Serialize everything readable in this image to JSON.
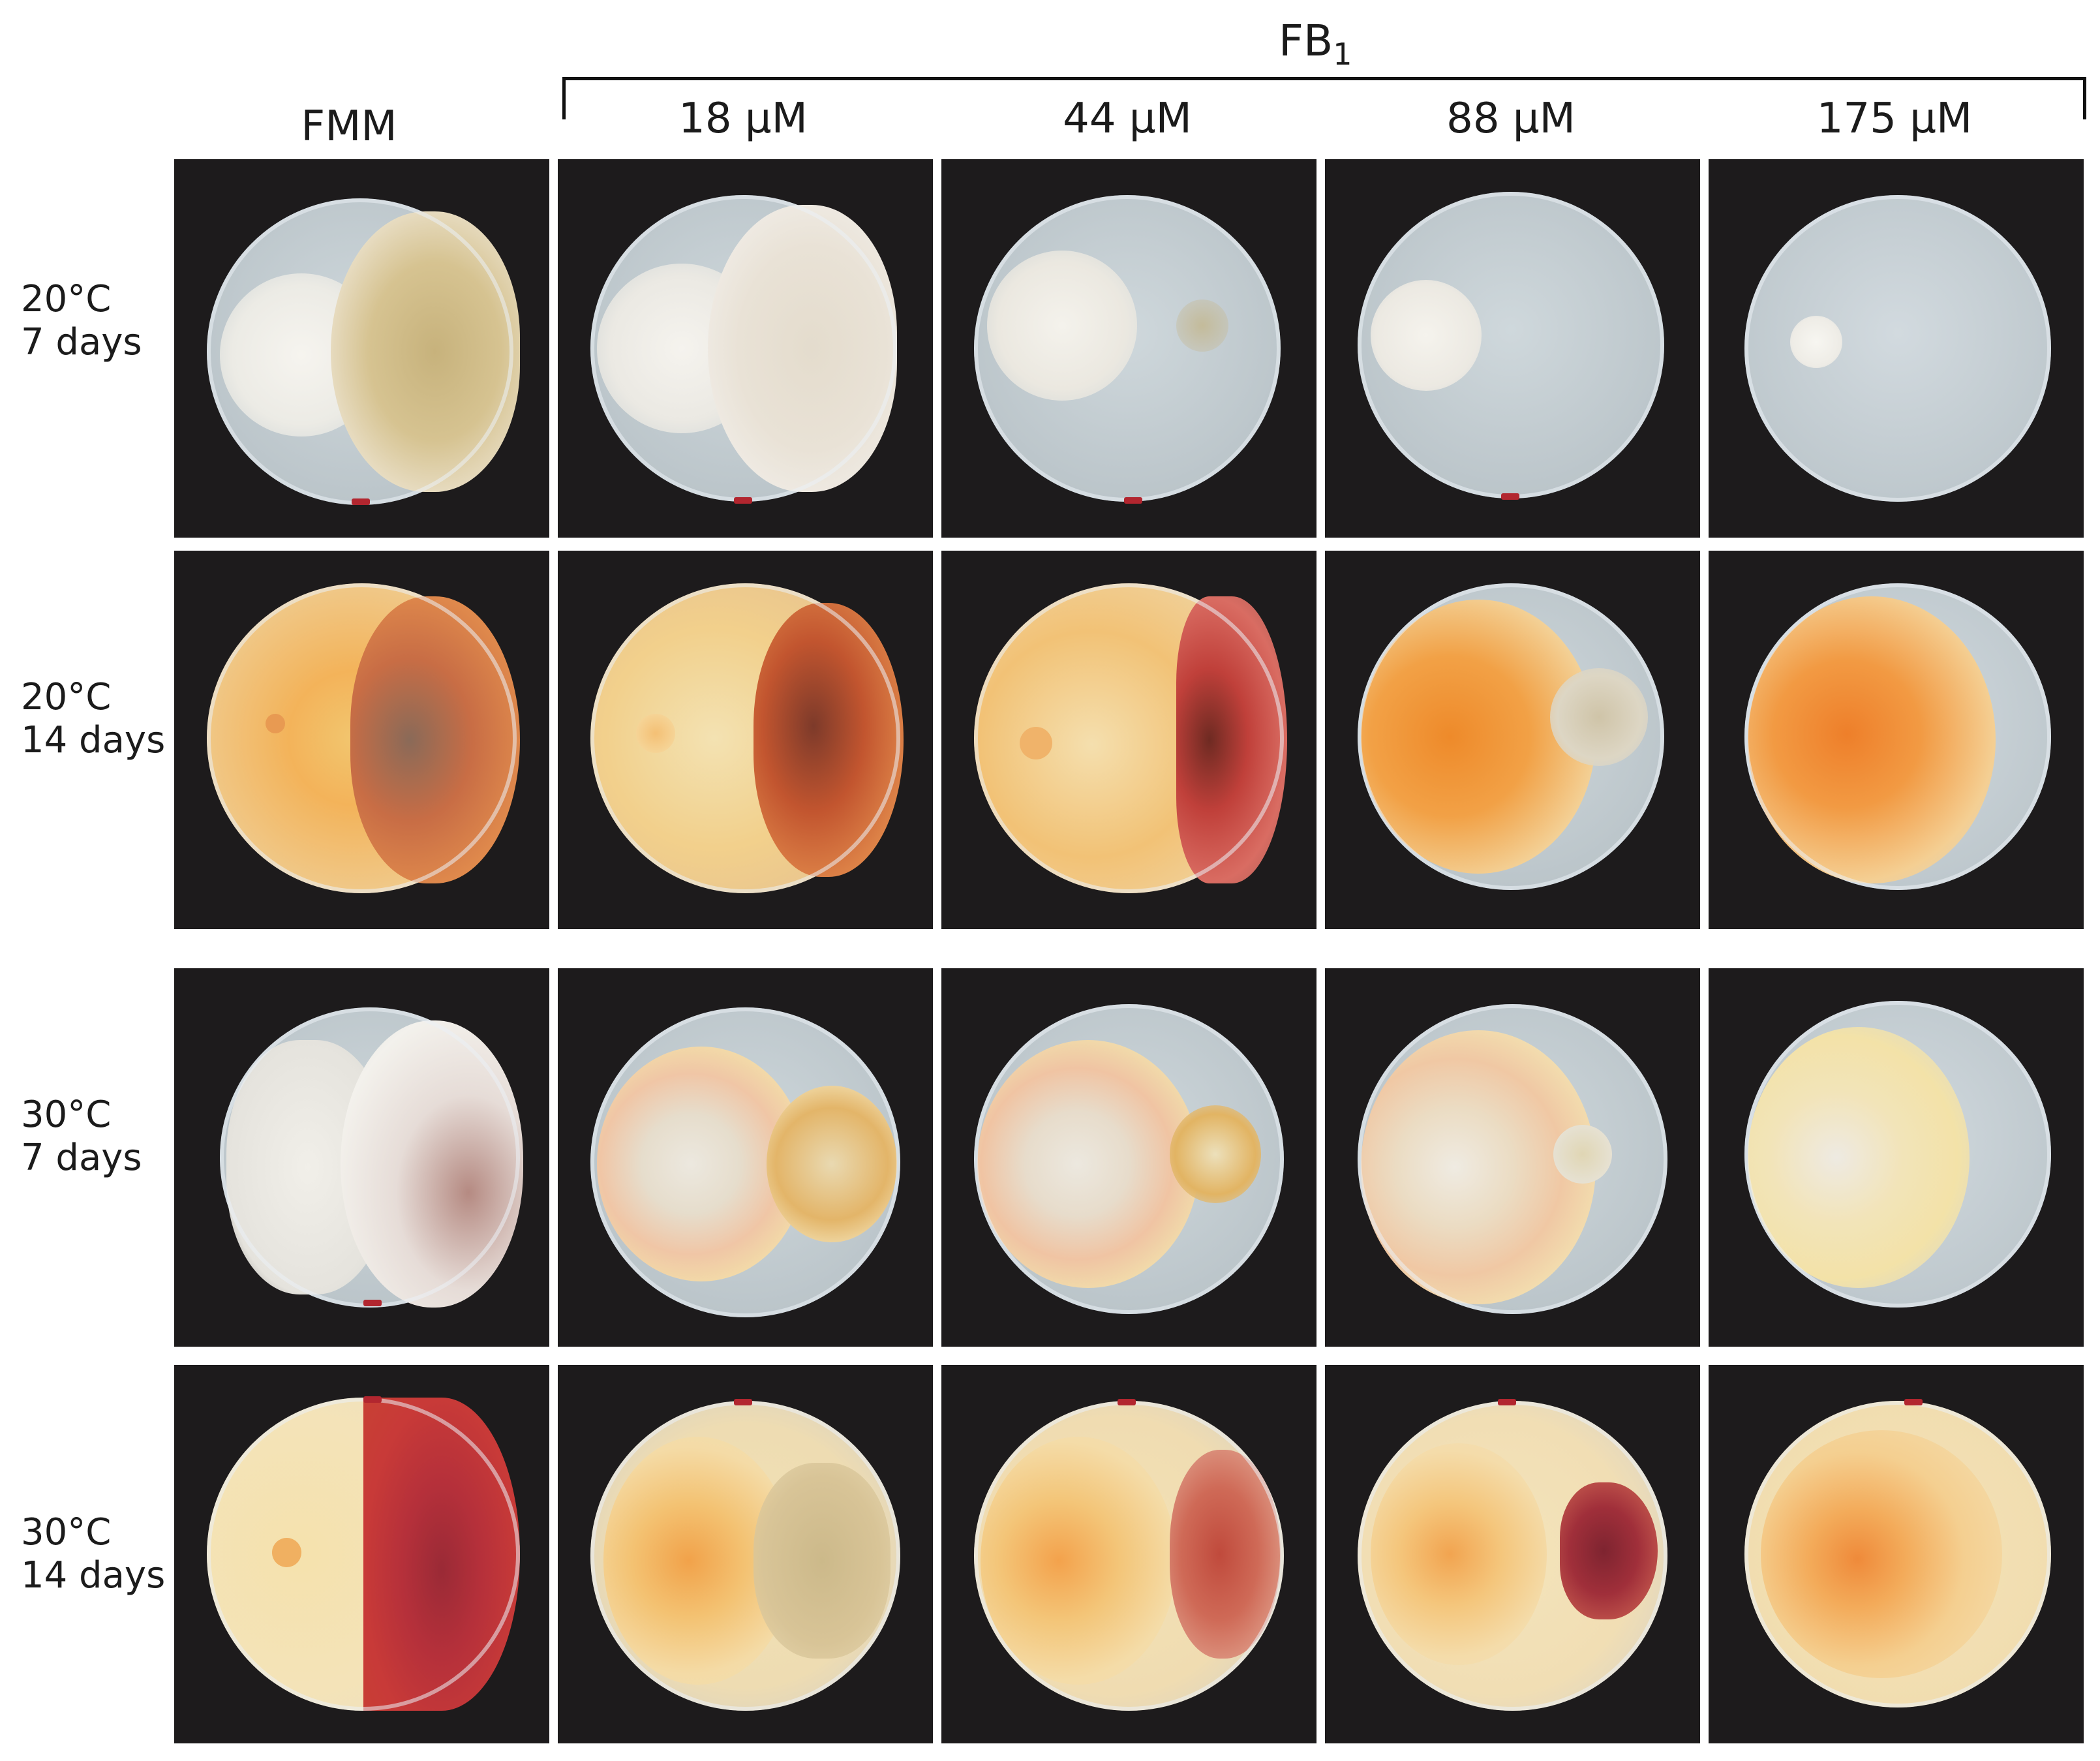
{
  "header": {
    "group_label": "FB",
    "group_subscript": "1",
    "columns": [
      "FMM",
      "18 µM",
      "44 µM",
      "88 µM",
      "175 µM"
    ]
  },
  "rows": [
    {
      "line1": "20°C",
      "line2": "7 days"
    },
    {
      "line1": "20°C",
      "line2": "14 days"
    },
    {
      "line1": "30°C",
      "line2": "7 days"
    },
    {
      "line1": "30°C",
      "line2": "14 days"
    }
  ],
  "colors": {
    "background": "#1d1b1c",
    "agar": "#c9d1d6",
    "white_mycelium": "#f1efe8",
    "yellow_pigment": "#f2cf7e",
    "orange_pigment": "#f0953a",
    "red_pigment": "#b5303a",
    "dark_red_pigment": "#8e2230"
  }
}
